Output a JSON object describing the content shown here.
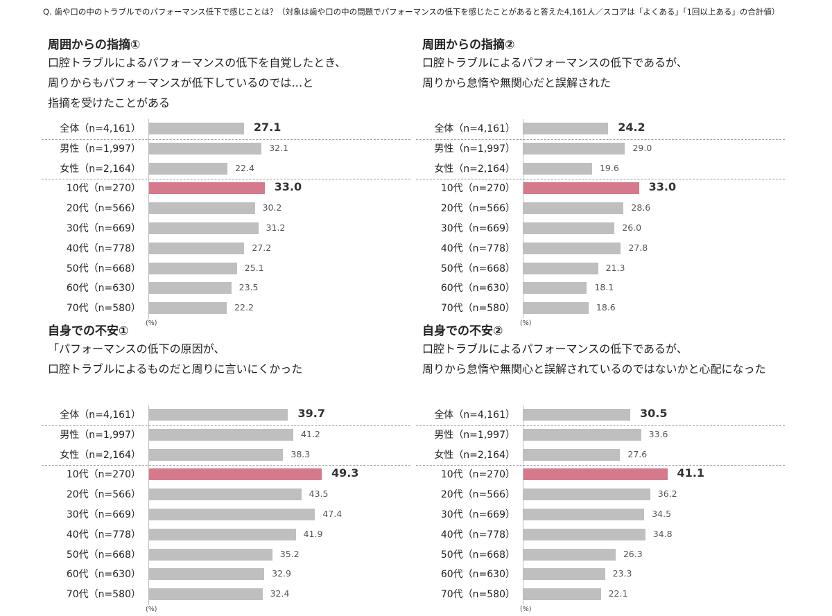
{
  "question": "Q. 歯や口の中のトラブルでのパフォーマンス低下で感じことは？（対象は歯や口の中の問題でパフォーマンスの低下を感じたことがあると答えた4,161人／スコアは「よくある」「1回以上ある」の合計値）",
  "unit_label": "(%)",
  "categories": [
    "全体（n=4,161）",
    "男性（n=1,997）",
    "女性（n=2,164）",
    "10代（n=270）",
    "20代（n=566）",
    "30代（n=669）",
    "40代（n=778）",
    "50代（n=668）",
    "60代（n=630）",
    "70代（n=580）"
  ],
  "colors": {
    "bar": "#bfbfbf",
    "highlight": "#d47a8c"
  },
  "chart_data": [
    {
      "type": "bar",
      "title": "周囲からの指摘①",
      "subtitle": "口腔トラブルによるパフォーマンスの低下を自覚したとき、\n周りからもパフォーマンスが低下しているのでは…と\n指摘を受けたことがある",
      "categories": [
        "全体（n=4,161）",
        "男性（n=1,997）",
        "女性（n=2,164）",
        "10代（n=270）",
        "20代（n=566）",
        "30代（n=669）",
        "40代（n=778）",
        "50代（n=668）",
        "60代（n=630）",
        "70代（n=580）"
      ],
      "values": [
        27.1,
        32.1,
        22.4,
        33.0,
        30.2,
        31.2,
        27.2,
        25.1,
        23.5,
        22.2
      ],
      "value_labels": [
        "27.1",
        "32.1",
        "22.4",
        "33.0",
        "30.2",
        "31.2",
        "27.2",
        "25.1",
        "23.5",
        "22.2"
      ],
      "highlight_index": 3,
      "orientation": "horizontal",
      "ylabel": "(%)"
    },
    {
      "type": "bar",
      "title": "周囲からの指摘②",
      "subtitle": "口腔トラブルによるパフォーマンスの低下であるが、\n周りから怠惰や無関心だと誤解された",
      "categories": [
        "全体（n=4,161）",
        "男性（n=1,997）",
        "女性（n=2,164）",
        "10代（n=270）",
        "20代（n=566）",
        "30代（n=669）",
        "40代（n=778）",
        "50代（n=668）",
        "60代（n=630）",
        "70代（n=580）"
      ],
      "values": [
        24.2,
        29.0,
        19.6,
        33.0,
        28.6,
        26.0,
        27.8,
        21.3,
        18.1,
        18.6
      ],
      "value_labels": [
        "24.2",
        "29.0",
        "19.6",
        "33.0",
        "28.6",
        "26.0",
        "27.8",
        "21.3",
        "18.1",
        "18.6"
      ],
      "highlight_index": 3,
      "orientation": "horizontal",
      "ylabel": "(%)"
    },
    {
      "type": "bar",
      "title": "自身での不安①",
      "subtitle": "「パフォーマンスの低下の原因が、\n口腔トラブルによるものだと周りに言いにくかった",
      "categories": [
        "全体（n=4,161）",
        "男性（n=1,997）",
        "女性（n=2,164）",
        "10代（n=270）",
        "20代（n=566）",
        "30代（n=669）",
        "40代（n=778）",
        "50代（n=668）",
        "60代（n=630）",
        "70代（n=580）"
      ],
      "values": [
        39.7,
        41.2,
        38.3,
        49.3,
        43.5,
        47.4,
        41.9,
        35.2,
        32.9,
        32.4
      ],
      "value_labels": [
        "39.7",
        "41.2",
        "38.3",
        "49.3",
        "43.5",
        "47.4",
        "41.9",
        "35.2",
        "32.9",
        "32.4"
      ],
      "highlight_index": 3,
      "orientation": "horizontal",
      "ylabel": "(%)"
    },
    {
      "type": "bar",
      "title": "自身での不安②",
      "subtitle": "口腔トラブルによるパフォーマンスの低下であるが、\n周りから怠惰や無関心と誤解されているのではないかと心配になった",
      "categories": [
        "全体（n=4,161）",
        "男性（n=1,997）",
        "女性（n=2,164）",
        "10代（n=270）",
        "20代（n=566）",
        "30代（n=669）",
        "40代（n=778）",
        "50代（n=668）",
        "60代（n=630）",
        "70代（n=580）"
      ],
      "values": [
        30.5,
        33.6,
        27.6,
        41.1,
        36.2,
        34.5,
        34.8,
        26.3,
        23.3,
        22.1
      ],
      "value_labels": [
        "30.5",
        "33.6",
        "27.6",
        "41.1",
        "36.2",
        "34.5",
        "34.8",
        "26.3",
        "23.3",
        "22.1"
      ],
      "highlight_index": 3,
      "orientation": "horizontal",
      "ylabel": "(%)"
    }
  ]
}
